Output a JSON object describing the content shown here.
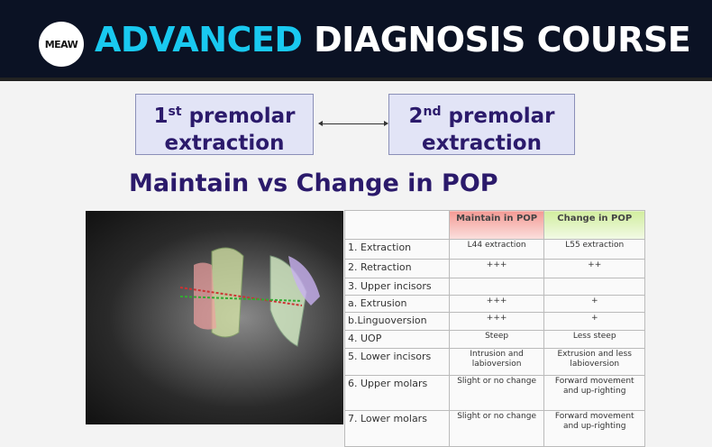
{
  "header": {
    "logo": "MEAW",
    "title_accent": "ADVANCED",
    "title_rest": "DIAGNOSIS COURSE"
  },
  "boxes": [
    {
      "num": "1",
      "sup": "st",
      "line1": "premolar",
      "line2": "extraction"
    },
    {
      "num": "2",
      "sup": "nd",
      "line1": "premolar",
      "line2": "extraction"
    }
  ],
  "slide_title": "Maintain vs Change in POP",
  "table": {
    "headers": [
      "",
      "Maintain in POP",
      "Change in POP"
    ],
    "rows": [
      [
        "1. Extraction",
        "L44 extraction",
        "L55 extraction"
      ],
      [
        "2. Retraction",
        "+++",
        "++"
      ],
      [
        "3. Upper incisors",
        "",
        ""
      ],
      [
        " a. Extrusion",
        "+++",
        "+"
      ],
      [
        " b.Linguoversion",
        "+++",
        "+"
      ],
      [
        "4. UOP",
        "Steep",
        "Less steep"
      ],
      [
        "5. Lower incisors",
        "Intrusion and labioversion",
        "Extrusion and less labioversion"
      ],
      [
        "6. Upper molars",
        "Slight or no change",
        "Forward movement and up-righting"
      ],
      [
        "7. Lower molars",
        "Slight or no change",
        "Forward movement and up-righting"
      ]
    ],
    "colors": {
      "maintain": "#f6a6a0",
      "change": "#d8f0b0"
    }
  }
}
